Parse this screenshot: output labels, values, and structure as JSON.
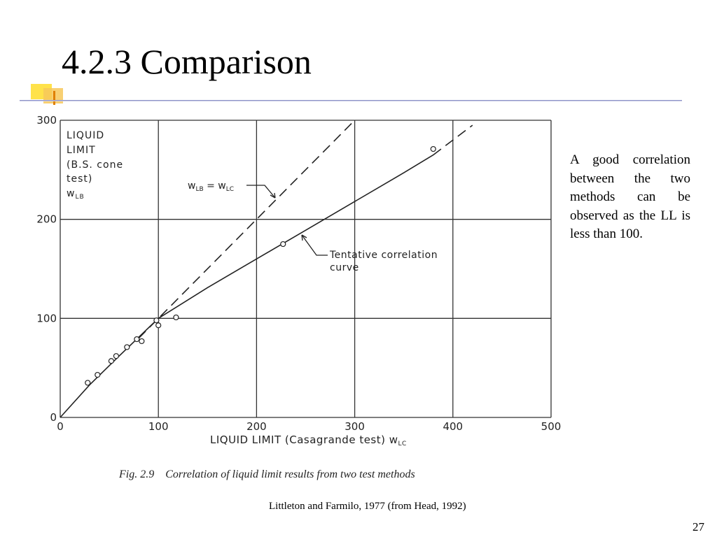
{
  "slide": {
    "title": "4.2.3 Comparison",
    "note": "A good correlation between the two methods can be observed as the LL is less than 100.",
    "credit": "Littleton and Farmilo, 1977 (from Head, 1992)",
    "page": "27"
  },
  "chart_data": {
    "type": "scatter",
    "caption": "Fig. 2.9    Correlation of liquid limit results from two test methods",
    "xlabel": "LIQUID LIMIT (Casagrande test) w",
    "xlabel_sub": "LC",
    "ylabel_lines": [
      "LIQUID",
      "LIMIT",
      "(B.S. cone",
      "test)",
      "w"
    ],
    "ylabel_sub": "LB",
    "xlim": [
      0,
      500
    ],
    "ylim": [
      0,
      300
    ],
    "x_ticks": [
      0,
      100,
      200,
      300,
      400,
      500
    ],
    "y_ticks": [
      0,
      100,
      200,
      300
    ],
    "grid": true,
    "series": [
      {
        "name": "Tentative correlation curve",
        "style": "solid",
        "points": [
          [
            0,
            0
          ],
          [
            30,
            33
          ],
          [
            60,
            62
          ],
          [
            100,
            100
          ],
          [
            150,
            131
          ],
          [
            200,
            160
          ],
          [
            250,
            189
          ],
          [
            300,
            218
          ],
          [
            350,
            247
          ],
          [
            380,
            265
          ]
        ]
      },
      {
        "name": "w_LB = w_LC",
        "style": "dashed",
        "points": [
          [
            80,
            80
          ],
          [
            300,
            300
          ]
        ]
      },
      {
        "name": "curve extension",
        "style": "dashed",
        "points": [
          [
            380,
            265
          ],
          [
            420,
            295
          ]
        ]
      }
    ],
    "points": [
      [
        28,
        35
      ],
      [
        38,
        43
      ],
      [
        52,
        57
      ],
      [
        57,
        62
      ],
      [
        68,
        71
      ],
      [
        78,
        79
      ],
      [
        83,
        77
      ],
      [
        98,
        98
      ],
      [
        100,
        93
      ],
      [
        118,
        101
      ],
      [
        227,
        175
      ],
      [
        380,
        271
      ]
    ],
    "annotations": [
      {
        "text": "w",
        "sub": "LB",
        "text2": " = w",
        "sub2": "LC"
      },
      {
        "text": "Tentative correlation",
        "text2": "curve"
      }
    ]
  }
}
